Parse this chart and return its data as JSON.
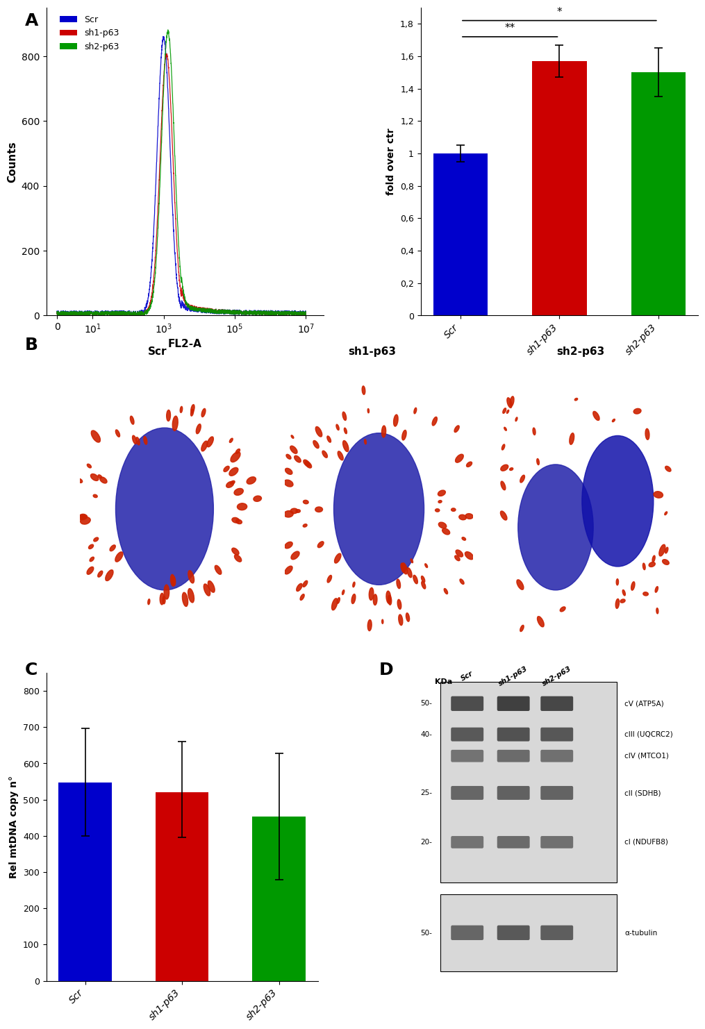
{
  "panel_A_bar": {
    "categories": [
      "Scr",
      "sh1-p63",
      "sh2-p63"
    ],
    "values": [
      1.0,
      1.57,
      1.5
    ],
    "errors": [
      0.05,
      0.1,
      0.15
    ],
    "colors": [
      "#0000CC",
      "#CC0000",
      "#009900"
    ],
    "ylabel": "fold over ctr",
    "ylim": [
      0,
      1.9
    ],
    "yticks": [
      0,
      0.2,
      0.4,
      0.6,
      0.8,
      1.0,
      1.2,
      1.4,
      1.6,
      1.8
    ],
    "ytick_labels": [
      "0",
      "0,2",
      "0,4",
      "0,6",
      "0,8",
      "1",
      "1,2",
      "1,4",
      "1,6",
      "1,8"
    ]
  },
  "panel_C_bar": {
    "categories": [
      "Scr",
      "sh1-p63",
      "sh2-p63"
    ],
    "values": [
      548,
      520,
      453
    ],
    "errors_upper": [
      148,
      140,
      175
    ],
    "errors_lower": [
      148,
      125,
      175
    ],
    "colors": [
      "#0000CC",
      "#CC0000",
      "#009900"
    ],
    "ylabel": "Rel mtDNA copy n°",
    "ylim": [
      0,
      850
    ],
    "yticks": [
      0,
      100,
      200,
      300,
      400,
      500,
      600,
      700,
      800
    ],
    "ytick_labels": [
      "0",
      "100",
      "200",
      "300",
      "400",
      "500",
      "600",
      "700",
      "800"
    ]
  },
  "flow_legend": {
    "labels": [
      "Scr",
      "sh1-p63",
      "sh2-p63"
    ],
    "colors": [
      "#0000CC",
      "#CC0000",
      "#009900"
    ]
  }
}
